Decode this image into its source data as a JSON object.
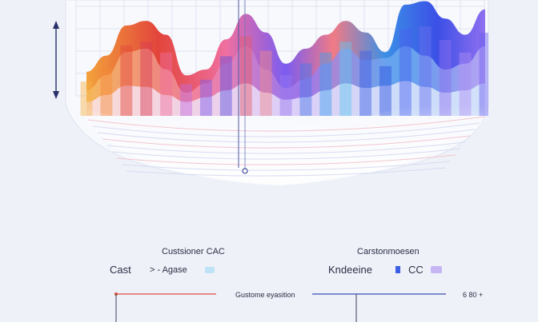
{
  "chart_data": {
    "type": "area",
    "title": "",
    "xlabel": "",
    "ylabel": "",
    "grid": true,
    "legend": {
      "left_title": "Custsioner CAC",
      "left_label_a": "Cast",
      "left_label_b": "> - Agase",
      "right_title": "Carstonmoesen",
      "right_label_a": "Kndeeine",
      "right_label_b": "CC",
      "placement": "bottom"
    },
    "footer": {
      "center_label": "Gustome eyasition",
      "right_value": "6 80 +"
    },
    "x": [
      0,
      1,
      2,
      3,
      4,
      5,
      6,
      7,
      8,
      9,
      10,
      11,
      12,
      13,
      14,
      15,
      16,
      17,
      18,
      19,
      20
    ],
    "series": [
      {
        "values": [
          38,
          52,
          78,
          82,
          70,
          35,
          40,
          66,
          88,
          72,
          45,
          58,
          70,
          82,
          72,
          55,
          96,
          99,
          84,
          70,
          92
        ]
      },
      {
        "values": [
          22,
          35,
          55,
          58,
          40,
          20,
          28,
          45,
          60,
          40,
          24,
          32,
          45,
          58,
          48,
          50,
          60,
          52,
          40,
          45,
          60
        ]
      },
      {
        "values": [
          12,
          18,
          26,
          25,
          18,
          12,
          16,
          22,
          28,
          20,
          14,
          16,
          22,
          28,
          24,
          26,
          30,
          25,
          20,
          22,
          28
        ]
      }
    ],
    "colors": {
      "warm": "#f4a03a",
      "red": "#e2453b",
      "pink": "#ef6fa0",
      "violet": "#7b5cf0",
      "blue": "#3b5fe6",
      "cyan": "#5fc8ef",
      "lavender": "#c6b6f4"
    }
  }
}
